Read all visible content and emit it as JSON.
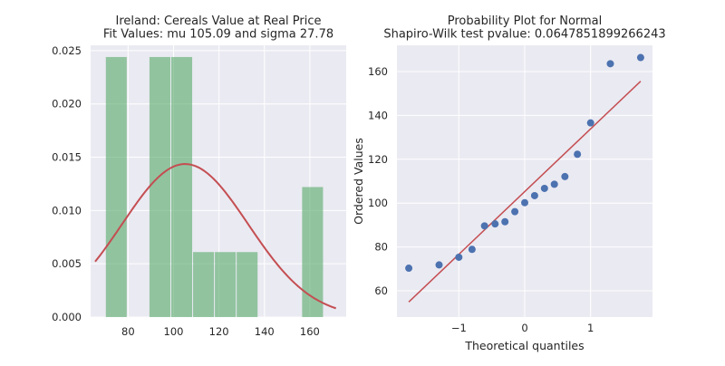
{
  "chart_data": [
    {
      "type": "bar",
      "title": "Ireland: Cereals Value at Real Price",
      "subtitle": "Fit Values: mu 105.09 and sigma 27.78",
      "xlabel": "",
      "ylabel": "",
      "xlim": [
        63.5,
        176
      ],
      "ylim": [
        0,
        0.0255
      ],
      "x_ticks": [
        80,
        100,
        120,
        140,
        160
      ],
      "y_ticks": [
        0.0,
        0.005,
        0.01,
        0.015,
        0.02,
        0.025
      ],
      "y_tick_labels": [
        "0.000",
        "0.005",
        "0.010",
        "0.015",
        "0.020",
        "0.025"
      ],
      "grid": true,
      "bins": [
        {
          "start": 70.0,
          "end": 79.6,
          "value": 0.0244
        },
        {
          "start": 79.6,
          "end": 89.2,
          "value": 0.0
        },
        {
          "start": 89.2,
          "end": 98.8,
          "value": 0.0244
        },
        {
          "start": 98.8,
          "end": 108.4,
          "value": 0.0244
        },
        {
          "start": 108.4,
          "end": 118.0,
          "value": 0.0061
        },
        {
          "start": 118.0,
          "end": 127.6,
          "value": 0.0061
        },
        {
          "start": 127.6,
          "end": 137.2,
          "value": 0.0061
        },
        {
          "start": 137.2,
          "end": 146.8,
          "value": 0.0
        },
        {
          "start": 146.8,
          "end": 156.4,
          "value": 0.0
        },
        {
          "start": 156.4,
          "end": 166.0,
          "value": 0.0122
        }
      ],
      "bar_color": "#55a868",
      "fit_line": {
        "distribution": "normal",
        "mu": 105.09,
        "sigma": 27.78,
        "x_range": [
          65.5,
          171.5
        ],
        "color": "#c44e52"
      }
    },
    {
      "type": "scatter",
      "title": "Probability Plot for Normal",
      "subtitle": "Shapiro-Wilk test pvalue: 0.0647851899266243",
      "xlabel": "Theoretical quantiles",
      "ylabel": "Ordered Values",
      "xlim": [
        -1.94,
        1.94
      ],
      "ylim": [
        48,
        172
      ],
      "x_ticks": [
        -1,
        0,
        1
      ],
      "x_tick_labels": [
        "−1",
        "0",
        "1"
      ],
      "y_ticks": [
        60,
        80,
        100,
        120,
        140,
        160
      ],
      "grid": true,
      "points": [
        {
          "x": -1.76,
          "y": 70.3
        },
        {
          "x": -1.3,
          "y": 71.8
        },
        {
          "x": -1.0,
          "y": 75.3
        },
        {
          "x": -0.8,
          "y": 78.9
        },
        {
          "x": -0.61,
          "y": 89.6
        },
        {
          "x": -0.45,
          "y": 90.5
        },
        {
          "x": -0.3,
          "y": 91.5
        },
        {
          "x": -0.15,
          "y": 96.1
        },
        {
          "x": 0.0,
          "y": 100.2
        },
        {
          "x": 0.15,
          "y": 103.4
        },
        {
          "x": 0.3,
          "y": 106.7
        },
        {
          "x": 0.45,
          "y": 108.6
        },
        {
          "x": 0.61,
          "y": 112.1
        },
        {
          "x": 0.8,
          "y": 122.3
        },
        {
          "x": 1.0,
          "y": 136.6
        },
        {
          "x": 1.3,
          "y": 163.6
        },
        {
          "x": 1.76,
          "y": 166.4
        }
      ],
      "point_color": "#4c72b0",
      "fit_line": {
        "x": [
          -1.76,
          1.76
        ],
        "y": [
          54.9,
          155.6
        ],
        "color": "#c44e52"
      }
    }
  ]
}
